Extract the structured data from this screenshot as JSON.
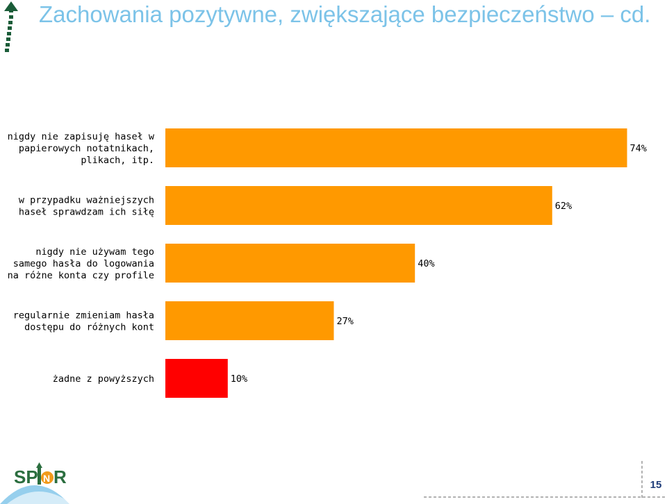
{
  "slide": {
    "title": "Zachowania pozytywne, zwiększające bezpieczeństwo – cd.",
    "page_number": "15",
    "logo": {
      "text": "SPINOR",
      "icon": "spinor-logo",
      "icon_top": "corner-arrow-icon"
    }
  },
  "colors": {
    "title": "#7cc3e8",
    "bar_primary": "#ff9900",
    "bar_highlight": "#ff0000",
    "page_number": "#1f3d7a",
    "arrow": "#1a5c38"
  },
  "chart_data": {
    "type": "bar",
    "orientation": "horizontal",
    "value_format": "percent",
    "xlim": [
      0,
      100
    ],
    "grid": false,
    "categories": [
      [
        "nigdy nie zapisuję haseł w",
        "papierowych notatnikach,",
        "plikach, itp."
      ],
      [
        "w przypadku ważniejszych",
        "haseł sprawdzam ich siłę"
      ],
      [
        "nigdy nie używam tego",
        "samego hasła do logowania",
        "na różne konta czy profile"
      ],
      [
        "regularnie zmieniam hasła",
        "dostępu do różnych kont"
      ],
      [
        "żadne z powyższych"
      ]
    ],
    "values": [
      74,
      62,
      40,
      27,
      10
    ],
    "value_labels": [
      "74%",
      "62%",
      "40%",
      "27%",
      "10%"
    ],
    "bar_colors": [
      "#ff9900",
      "#ff9900",
      "#ff9900",
      "#ff9900",
      "#ff0000"
    ]
  }
}
